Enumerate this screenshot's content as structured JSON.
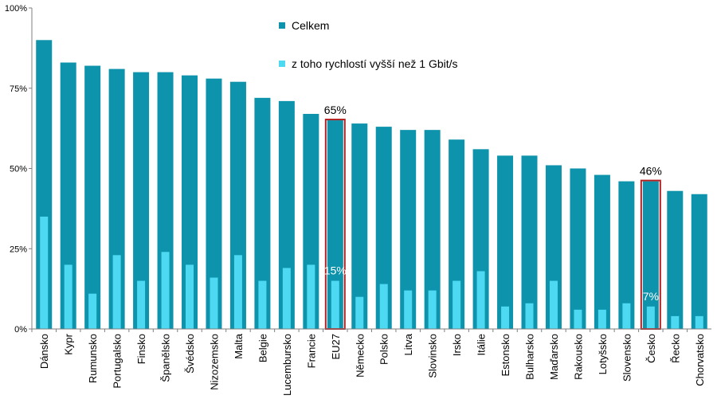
{
  "chart_data": {
    "type": "bar",
    "categories": [
      "Dánsko",
      "Kypr",
      "Rumunsko",
      "Portugalsko",
      "Finsko",
      "Španělsko",
      "Švédsko",
      "Nizozemsko",
      "Malta",
      "Belgie",
      "Lucembursko",
      "Francie",
      "EU27",
      "Německo",
      "Polsko",
      "Litva",
      "Slovinsko",
      "Irsko",
      "Itálie",
      "Estonsko",
      "Bulharsko",
      "Maďarsko",
      "Rakousko",
      "Lotyšsko",
      "Slovensko",
      "Česko",
      "Řecko",
      "Chorvatsko"
    ],
    "series": [
      {
        "name": "Celkem",
        "color": "#0E93AC",
        "values": [
          90,
          83,
          82,
          81,
          80,
          80,
          79,
          78,
          77,
          72,
          71,
          67,
          65,
          64,
          63,
          62,
          62,
          59,
          56,
          54,
          54,
          51,
          50,
          48,
          46,
          46,
          43,
          42
        ]
      },
      {
        "name": "z toho rychlostí vyšší než 1 Gbit/s",
        "color": "#4DD9F2",
        "values": [
          35,
          20,
          11,
          23,
          15,
          24,
          20,
          16,
          23,
          15,
          19,
          20,
          15,
          10,
          14,
          12,
          12,
          15,
          18,
          7,
          8,
          15,
          6,
          6,
          8,
          7,
          4,
          4
        ]
      }
    ],
    "ylim": [
      0,
      100
    ],
    "yticks": [
      "0%",
      "25%",
      "50%",
      "75%",
      "100%"
    ],
    "highlighted": [
      "EU27",
      "Česko"
    ],
    "highlight_color": "#B22222",
    "annotations": [
      {
        "category": "EU27",
        "total_label": "65%",
        "part_label": "15%"
      },
      {
        "category": "Česko",
        "total_label": "46%",
        "part_label": "7%"
      }
    ],
    "title": "",
    "xlabel": "",
    "ylabel": "",
    "grid": false,
    "legend_position": "top-center"
  }
}
